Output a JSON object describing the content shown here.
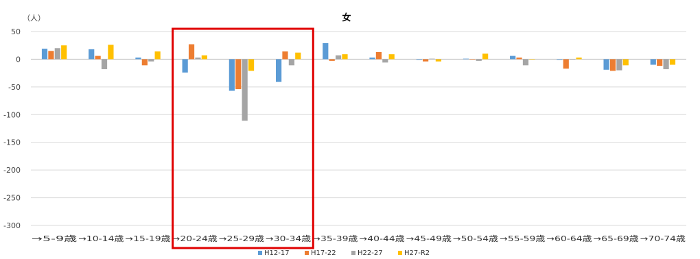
{
  "chart_data": {
    "type": "bar",
    "title": "女",
    "ylabel": "（人）",
    "xlabel": "",
    "ylim": [
      -300,
      50
    ],
    "yticks": [
      50,
      0,
      -50,
      -100,
      -150,
      -200,
      -250,
      -300
    ],
    "grid": true,
    "legend_position": "bottom",
    "categories": [
      "→5-9歳",
      "→10-14歳",
      "→15-19歳",
      "→20-24歳",
      "→25-29歳",
      "→30-34歳",
      "→35-39歳",
      "→40-44歳",
      "→45-49歳",
      "→50-54歳",
      "→55-59歳",
      "→60-64歳",
      "→65-69歳",
      "→70-74歳"
    ],
    "series": [
      {
        "name": "H12-17",
        "color": "#5B9BD5",
        "values": [
          19,
          18,
          3,
          -24,
          -57,
          -41,
          29,
          3,
          -1,
          1,
          6,
          -1,
          -19,
          -10
        ]
      },
      {
        "name": "H17-22",
        "color": "#ED7D31",
        "values": [
          15,
          6,
          -11,
          27,
          -54,
          14,
          -3,
          13,
          -4,
          0,
          3,
          -17,
          -21,
          -12
        ]
      },
      {
        "name": "H22-27",
        "color": "#A5A5A5",
        "values": [
          20,
          -18,
          -4,
          3,
          -111,
          -11,
          7,
          -6,
          1,
          -3,
          -11,
          0,
          -20,
          -18
        ]
      },
      {
        "name": "H27-R2",
        "color": "#FFC000",
        "values": [
          25,
          26,
          14,
          7,
          -21,
          12,
          9,
          9,
          -4,
          10,
          0,
          3,
          -11,
          -10
        ]
      }
    ],
    "highlight": {
      "from_category": "→20-24歳",
      "to_category": "→30-34歳",
      "color": "#E00000"
    }
  }
}
